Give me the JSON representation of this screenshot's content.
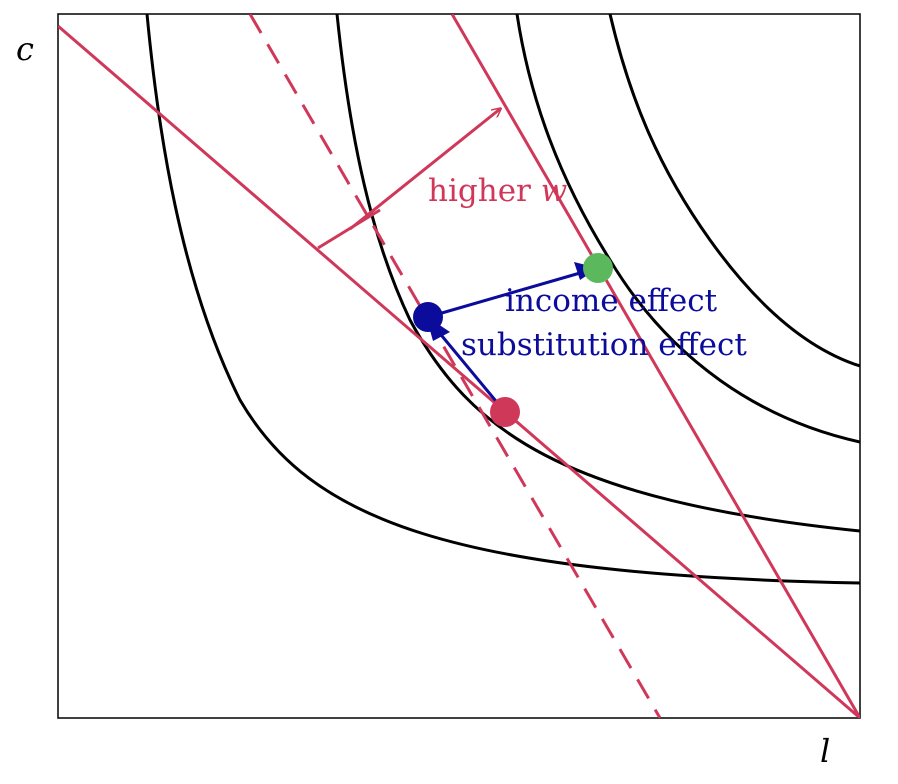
{
  "axes": {
    "x_label": "l",
    "y_label": "c"
  },
  "annotations": {
    "wage_arrow_prefix": "higher ",
    "wage_arrow_var": "w",
    "income_effect": "income effect",
    "substitution_effect": "substitution effect"
  },
  "colors": {
    "budget": "#d0385a",
    "indifference": "#000000",
    "effect_arrow": "#0b0b9c",
    "original_point": "#d0385a",
    "intermediate_point": "#0b0b9c",
    "new_point": "#5cb85c"
  },
  "chart_data": {
    "type": "diagram",
    "xlabel": "l",
    "ylabel": "c",
    "indifference_curves": 4,
    "budget_lines": [
      "original",
      "higher wage",
      "compensated (dashed)"
    ],
    "points": [
      "original optimum (red)",
      "substitution point (blue)",
      "new optimum (green)"
    ]
  }
}
